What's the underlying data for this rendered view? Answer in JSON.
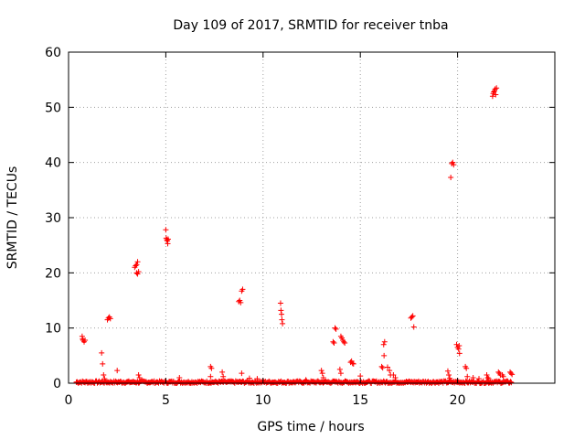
{
  "chart_data": {
    "type": "scatter",
    "title": "Day 109 of 2017, SRMTID for receiver tnba",
    "xlabel": "GPS time / hours",
    "ylabel": "SRMTID / TECUs",
    "xlim": [
      0,
      25
    ],
    "ylim": [
      0,
      60
    ],
    "xticks": [
      0,
      5,
      10,
      15,
      20
    ],
    "yticks": [
      0,
      10,
      20,
      30,
      40,
      50,
      60
    ],
    "grid": true,
    "marker": "+",
    "color": "#ff0000",
    "baseline": {
      "x_start": 0.4,
      "x_end": 22.8,
      "y_max": 0.4
    },
    "series": [
      {
        "name": "SRMTID",
        "points": [
          [
            0.7,
            8.5
          ],
          [
            0.72,
            8.0
          ],
          [
            0.75,
            7.8
          ],
          [
            0.8,
            7.5
          ],
          [
            0.85,
            7.8
          ],
          [
            1.7,
            5.5
          ],
          [
            1.75,
            3.5
          ],
          [
            1.8,
            1.5
          ],
          [
            1.85,
            0.8
          ],
          [
            2.0,
            11.5
          ],
          [
            2.05,
            11.8
          ],
          [
            2.1,
            12.0
          ],
          [
            2.15,
            11.7
          ],
          [
            2.5,
            2.3
          ],
          [
            3.4,
            21.0
          ],
          [
            3.45,
            21.3
          ],
          [
            3.5,
            21.5
          ],
          [
            3.55,
            22.0
          ],
          [
            3.5,
            20.0
          ],
          [
            3.55,
            19.8
          ],
          [
            3.6,
            20.2
          ],
          [
            3.6,
            1.5
          ],
          [
            3.65,
            1.0
          ],
          [
            5.0,
            27.8
          ],
          [
            5.02,
            26.3
          ],
          [
            5.05,
            26.0
          ],
          [
            5.08,
            25.8
          ],
          [
            5.1,
            25.3
          ],
          [
            5.12,
            26.1
          ],
          [
            5.7,
            1.0
          ],
          [
            7.3,
            3.0
          ],
          [
            7.35,
            2.7
          ],
          [
            7.3,
            1.2
          ],
          [
            7.9,
            2.0
          ],
          [
            7.95,
            1.2
          ],
          [
            8.75,
            14.8
          ],
          [
            8.8,
            15.0
          ],
          [
            8.85,
            14.6
          ],
          [
            8.9,
            16.7
          ],
          [
            8.95,
            17.0
          ],
          [
            8.9,
            1.8
          ],
          [
            9.3,
            0.9
          ],
          [
            9.7,
            0.8
          ],
          [
            10.9,
            14.5
          ],
          [
            10.92,
            13.2
          ],
          [
            10.95,
            12.5
          ],
          [
            10.97,
            11.5
          ],
          [
            11.0,
            10.8
          ],
          [
            12.2,
            0.6
          ],
          [
            13.0,
            2.3
          ],
          [
            13.05,
            1.8
          ],
          [
            13.1,
            1.0
          ],
          [
            13.6,
            7.5
          ],
          [
            13.65,
            7.3
          ],
          [
            13.7,
            10.0
          ],
          [
            13.75,
            9.8
          ],
          [
            13.95,
            2.5
          ],
          [
            14.0,
            1.8
          ],
          [
            14.0,
            8.5
          ],
          [
            14.05,
            8.2
          ],
          [
            14.1,
            7.8
          ],
          [
            14.15,
            7.5
          ],
          [
            14.2,
            7.3
          ],
          [
            14.5,
            3.8
          ],
          [
            14.55,
            4.0
          ],
          [
            14.6,
            3.6
          ],
          [
            14.65,
            3.5
          ],
          [
            15.0,
            1.3
          ],
          [
            16.1,
            3.0
          ],
          [
            16.15,
            2.8
          ],
          [
            16.2,
            7.0
          ],
          [
            16.25,
            7.5
          ],
          [
            16.22,
            5.0
          ],
          [
            16.4,
            2.9
          ],
          [
            16.5,
            2.3
          ],
          [
            16.55,
            1.5
          ],
          [
            16.7,
            1.5
          ],
          [
            16.8,
            1.0
          ],
          [
            17.6,
            11.8
          ],
          [
            17.65,
            12.0
          ],
          [
            17.7,
            12.2
          ],
          [
            17.75,
            10.2
          ],
          [
            19.5,
            2.2
          ],
          [
            19.55,
            1.5
          ],
          [
            19.6,
            0.9
          ],
          [
            19.65,
            37.3
          ],
          [
            19.7,
            39.8
          ],
          [
            19.75,
            40.0
          ],
          [
            19.8,
            39.6
          ],
          [
            19.95,
            7.0
          ],
          [
            20.0,
            6.5
          ],
          [
            20.05,
            6.2
          ],
          [
            20.1,
            5.4
          ],
          [
            20.08,
            6.8
          ],
          [
            20.4,
            3.0
          ],
          [
            20.45,
            2.7
          ],
          [
            20.5,
            1.2
          ],
          [
            20.8,
            1.0
          ],
          [
            21.1,
            0.8
          ],
          [
            21.5,
            1.5
          ],
          [
            21.55,
            1.0
          ],
          [
            21.6,
            0.8
          ],
          [
            21.8,
            52.0
          ],
          [
            21.83,
            52.5
          ],
          [
            21.86,
            52.8
          ],
          [
            21.9,
            53.0
          ],
          [
            21.93,
            53.3
          ],
          [
            21.96,
            52.3
          ],
          [
            22.0,
            53.5
          ],
          [
            22.1,
            2.0
          ],
          [
            22.15,
            1.8
          ],
          [
            22.2,
            1.5
          ],
          [
            22.3,
            1.5
          ],
          [
            22.35,
            1.2
          ],
          [
            22.7,
            2.0
          ],
          [
            22.75,
            1.8
          ],
          [
            22.8,
            1.6
          ]
        ]
      }
    ]
  }
}
